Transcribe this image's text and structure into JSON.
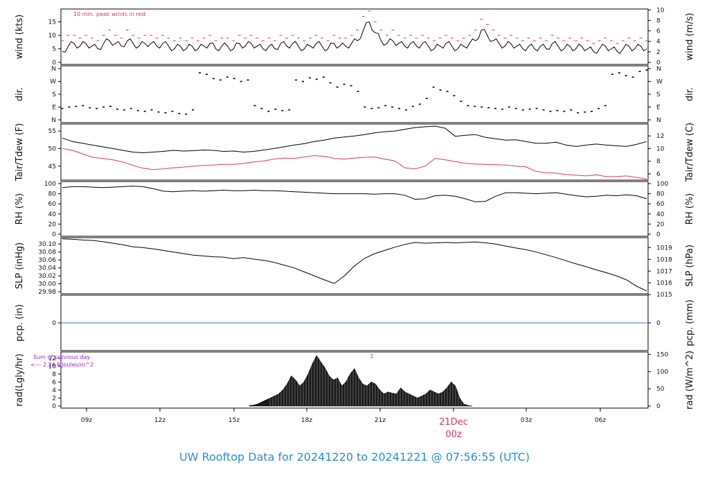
{
  "title": "UW Rooftop Data for 20241220  to  20241221 @ 07:56:55  (UTC)",
  "colors": {
    "title": "#2b8fd0",
    "red": "#e0395a",
    "blue": "#3a6fc4",
    "purple": "#a020f0",
    "black": "#000000"
  },
  "x_axis": {
    "ticks": [
      "09z",
      "12z",
      "15z",
      "18z",
      "21z",
      "00z",
      "03z",
      "06z"
    ],
    "day_label": "21Dec",
    "day_tick": "00z"
  },
  "chart_data": [
    {
      "type": "line",
      "id": "wind",
      "ylabel_left": "wind (kts)",
      "ylabel_right": "wind (m/s)",
      "left_ticks": [
        "0",
        "5",
        "10",
        "15"
      ],
      "right_ticks": [
        "0",
        "2",
        "4",
        "6",
        "8",
        "10"
      ],
      "annotation": "10 min. peak winds in red",
      "ylim": [
        0,
        19
      ],
      "series": [
        {
          "values": [
            4,
            6,
            7,
            6,
            7,
            6,
            5,
            7,
            8,
            7,
            6,
            8,
            7,
            6,
            7,
            7,
            6,
            7,
            6,
            5,
            6,
            5,
            6,
            5,
            6,
            7,
            5,
            6,
            6,
            5,
            7,
            6,
            7,
            6,
            5,
            6,
            5,
            7,
            6,
            7,
            6,
            5,
            6,
            7,
            6,
            5,
            7,
            6,
            6,
            7,
            8,
            12,
            15,
            11,
            8,
            7,
            8,
            7,
            6,
            7,
            6,
            7,
            6,
            5,
            6,
            7,
            6,
            5,
            6,
            7,
            8,
            12,
            10,
            8,
            7,
            6,
            7,
            6,
            5,
            6,
            5,
            6,
            5,
            7,
            6,
            5,
            6,
            5,
            6,
            5,
            4,
            5,
            6,
            5,
            4,
            5,
            6,
            5,
            6,
            5
          ]
        },
        {
          "values": [
            8,
            10,
            10,
            9,
            10,
            9,
            8,
            10,
            12,
            10,
            9,
            12,
            10,
            9,
            10,
            10,
            9,
            10,
            9,
            8,
            9,
            8,
            9,
            8,
            9,
            10,
            8,
            9,
            9,
            8,
            10,
            9,
            10,
            9,
            8,
            9,
            8,
            10,
            9,
            10,
            9,
            8,
            9,
            10,
            9,
            8,
            10,
            9,
            9,
            10,
            12,
            17,
            19,
            15,
            12,
            10,
            12,
            10,
            9,
            10,
            9,
            10,
            9,
            8,
            9,
            10,
            9,
            8,
            9,
            10,
            12,
            16,
            14,
            12,
            10,
            9,
            10,
            9,
            8,
            9,
            8,
            9,
            8,
            10,
            9,
            8,
            9,
            8,
            9,
            8,
            7,
            8,
            9,
            8,
            7,
            8,
            9,
            8,
            9,
            8
          ]
        }
      ]
    },
    {
      "type": "scatter",
      "id": "dir",
      "ylabel_left": "dir.",
      "ylabel_right": "dir.",
      "left_ticks": [
        "N",
        "E",
        "S",
        "W",
        "N"
      ],
      "right_ticks": [
        "N",
        "E",
        "S",
        "W",
        "N"
      ],
      "ylim": [
        0,
        360
      ],
      "values": [
        80,
        90,
        95,
        100,
        85,
        80,
        90,
        95,
        75,
        70,
        80,
        65,
        60,
        70,
        55,
        50,
        60,
        45,
        40,
        70,
        330,
        320,
        290,
        280,
        300,
        290,
        270,
        280,
        100,
        80,
        60,
        75,
        65,
        70,
        280,
        270,
        295,
        285,
        300,
        260,
        230,
        250,
        240,
        200,
        90,
        80,
        85,
        100,
        90,
        80,
        70,
        95,
        110,
        150,
        230,
        210,
        200,
        170,
        130,
        100,
        95,
        90,
        85,
        80,
        75,
        90,
        80,
        70,
        75,
        80,
        70,
        60,
        65,
        60,
        70,
        50,
        55,
        60,
        80,
        100,
        320,
        330,
        310,
        300,
        340,
        350
      ]
    },
    {
      "type": "line",
      "id": "temp",
      "ylabel_left": "Tair/Tdew (F)",
      "ylabel_right": "Tair/Tdew (C)",
      "left_ticks": [
        "45",
        "50",
        "55"
      ],
      "right_ticks": [
        "6",
        "8",
        "10",
        "12"
      ],
      "ylim": [
        41,
        57
      ],
      "series": [
        {
          "values": [
            53,
            52,
            51.5,
            51,
            50.5,
            50,
            49.5,
            49,
            48.8,
            49,
            49.2,
            49.5,
            49.3,
            49.4,
            49.6,
            49.5,
            49.2,
            49.3,
            49,
            49.2,
            49.6,
            50,
            50.5,
            51,
            51.4,
            52,
            52.4,
            53,
            53.3,
            53.6,
            54,
            54.5,
            54.8,
            55,
            55.5,
            56,
            56.2,
            56.4,
            55.8,
            53.5,
            53.8,
            54,
            53.2,
            52.8,
            52.4,
            52.5,
            52,
            51.5,
            51.5,
            51.8,
            51,
            50.6,
            51,
            51.3,
            51,
            50.8,
            50.6,
            51.2,
            52
          ]
        },
        {
          "values": [
            50,
            49.5,
            48.5,
            47.5,
            47.2,
            46.8,
            46.2,
            45.2,
            44.4,
            44,
            44.2,
            44.5,
            44.7,
            45,
            45.2,
            45.3,
            45.5,
            45.5,
            45.8,
            46.2,
            46.5,
            47,
            47.3,
            47.2,
            47.6,
            48,
            47.8,
            47.2,
            47,
            47.3,
            47.5,
            47.6,
            47,
            46.5,
            44.5,
            44.2,
            45,
            47.2,
            46.8,
            46.3,
            45.8,
            45.6,
            45.5,
            45.4,
            45.3,
            45,
            44.8,
            43.5,
            43.1,
            43,
            42.6,
            42.4,
            42.2,
            42.5,
            42,
            42,
            42.2,
            41.8,
            41.3
          ]
        }
      ]
    },
    {
      "type": "line",
      "id": "rh",
      "ylabel_left": "RH (%)",
      "ylabel_right": "RH (%)",
      "left_ticks": [
        "0",
        "20",
        "40",
        "60",
        "80",
        "100"
      ],
      "right_ticks": [
        "0",
        "20",
        "40",
        "60",
        "80",
        "100"
      ],
      "ylim": [
        0,
        100
      ],
      "series": [
        {
          "values": [
            92,
            94,
            94,
            93,
            92,
            93,
            94,
            95,
            94,
            90,
            85,
            84,
            85,
            86,
            85,
            86,
            87,
            86,
            86,
            87,
            86,
            86,
            85,
            84,
            83,
            82,
            81,
            80,
            80,
            80,
            80,
            79,
            80,
            80,
            77,
            69,
            70,
            76,
            77,
            75,
            70,
            64,
            65,
            75,
            82,
            82,
            81,
            80,
            81,
            82,
            79,
            76,
            74,
            75,
            77,
            76,
            78,
            76,
            70
          ]
        }
      ]
    },
    {
      "type": "line",
      "id": "slp",
      "ylabel_left": "SLP (inHg)",
      "ylabel_right": "SLP (hPa)",
      "left_ticks": [
        "29.98",
        "30.00",
        "30.02",
        "30.04",
        "30.06",
        "30.08",
        "30.10"
      ],
      "right_ticks": [
        "1015",
        "1016",
        "1017",
        "1018",
        "1019"
      ],
      "ylim": [
        29.975,
        30.116
      ],
      "series": [
        {
          "values": [
            30.113,
            30.112,
            30.11,
            30.109,
            30.106,
            30.102,
            30.098,
            30.093,
            30.091,
            30.088,
            30.084,
            30.08,
            30.076,
            30.072,
            30.07,
            30.068,
            30.067,
            30.063,
            30.066,
            30.062,
            30.059,
            30.054,
            30.047,
            30.04,
            30.03,
            30.02,
            30.01,
            30.001,
            30.02,
            30.045,
            30.064,
            30.076,
            30.084,
            30.092,
            30.099,
            30.104,
            30.102,
            30.103,
            30.104,
            30.103,
            30.104,
            30.105,
            30.103,
            30.1,
            30.095,
            30.09,
            30.086,
            30.08,
            30.073,
            30.066,
            30.058,
            30.05,
            30.043,
            30.035,
            30.028,
            30.02,
            30.01,
            29.994,
            29.982
          ]
        }
      ]
    },
    {
      "type": "line",
      "id": "pcp",
      "ylabel_left": "pcp. (in)",
      "ylabel_right": "pcp. (mm)",
      "left_ticks": [
        "0"
      ],
      "right_ticks": [
        "0"
      ],
      "ylim": [
        -1,
        1
      ],
      "series": [
        {
          "values": [
            0,
            0
          ]
        }
      ]
    },
    {
      "type": "area",
      "id": "rad",
      "ylabel_left": "rad(Lgly/hr)",
      "ylabel_right": "rad (W/m^2)",
      "left_ticks": [
        "0",
        "2",
        "4",
        "6",
        "8",
        "10",
        "12"
      ],
      "right_ticks": [
        "0",
        "50",
        "100",
        "150"
      ],
      "annotation_sum": "Sum of previous day",
      "annotation_total": "<--- 2.24 MJoules/m^2",
      "annotation_marker": "1",
      "ylim": [
        0,
        13
      ],
      "series": [
        {
          "values": [
            0.1,
            0.2,
            0.5,
            1,
            1.5,
            2,
            2.5,
            3,
            4,
            5.5,
            7.5,
            6.5,
            5,
            6,
            8,
            10.5,
            12.6,
            11,
            9.5,
            7.5,
            6.5,
            7,
            5,
            6,
            8,
            9.3,
            7,
            5.5,
            5,
            6,
            5.5,
            4,
            3,
            3.5,
            3.2,
            3,
            4.5,
            3.5,
            3,
            2.5,
            2,
            2.5,
            3,
            4,
            3.5,
            3,
            3.5,
            4.5,
            6,
            5,
            2,
            0.5,
            0.1,
            0
          ]
        }
      ]
    }
  ]
}
